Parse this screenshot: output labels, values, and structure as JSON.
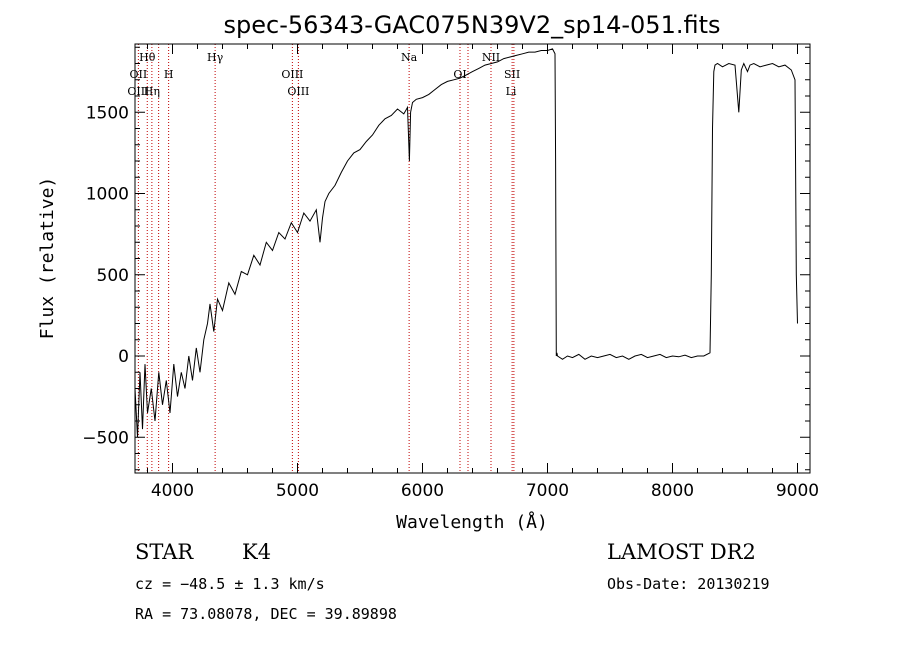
{
  "chart_data": {
    "type": "line",
    "title": "spec-56343-GAC075N39V2_sp14-051.fits",
    "xlabel": "Wavelength (Å)",
    "ylabel": "Flux (relative)",
    "xlim": [
      3700,
      9100
    ],
    "ylim": [
      -720,
      1920
    ],
    "x_ticks": [
      4000,
      5000,
      6000,
      7000,
      8000,
      9000
    ],
    "y_ticks": [
      -500,
      0,
      500,
      1000,
      1500
    ],
    "x_tick_labels": [
      "4000",
      "5000",
      "6000",
      "7000",
      "8000",
      "9000"
    ],
    "y_tick_labels": [
      "−500",
      "0",
      "500",
      "1000",
      "1500"
    ],
    "series": [
      {
        "x": [
          3700,
          3720,
          3740,
          3760,
          3780,
          3800,
          3830,
          3860,
          3890,
          3920,
          3950,
          3980,
          4010,
          4040,
          4070,
          4100,
          4130,
          4160,
          4190,
          4220,
          4250,
          4280,
          4300,
          4330,
          4360,
          4400,
          4450,
          4500,
          4550,
          4600,
          4650,
          4700,
          4750,
          4800,
          4850,
          4900,
          4950,
          5000,
          5050,
          5100,
          5150,
          5180,
          5200,
          5220,
          5250,
          5300,
          5350,
          5400,
          5450,
          5500,
          5550,
          5600,
          5650,
          5700,
          5750,
          5800,
          5850,
          5880,
          5895,
          5905,
          5920,
          5950,
          6000,
          6050,
          6100,
          6150,
          6200,
          6250,
          6300,
          6350,
          6400,
          6450,
          6500,
          6550,
          6600,
          6650,
          6700,
          6750,
          6800,
          6850,
          6900,
          6950,
          7000,
          7040,
          7060,
          7065,
          7070,
          7075,
          7080,
          7120,
          7160,
          7200,
          7250,
          7300,
          7350,
          7400,
          7450,
          7500,
          7550,
          7600,
          7650,
          7700,
          7750,
          7800,
          7850,
          7900,
          7950,
          8000,
          8050,
          8100,
          8150,
          8200,
          8250,
          8300,
          8310,
          8320,
          8330,
          8340,
          8360,
          8400,
          8450,
          8500,
          8530,
          8550,
          8570,
          8600,
          8620,
          8650,
          8700,
          8750,
          8800,
          8850,
          8900,
          8950,
          8980,
          8990,
          9000
        ],
        "y": [
          -200,
          -500,
          -100,
          -450,
          -50,
          -350,
          -200,
          -400,
          -100,
          -300,
          -150,
          -350,
          -50,
          -250,
          -100,
          -200,
          0,
          -150,
          50,
          -100,
          100,
          200,
          320,
          150,
          350,
          280,
          450,
          380,
          520,
          500,
          620,
          560,
          700,
          650,
          760,
          720,
          820,
          760,
          880,
          830,
          900,
          700,
          850,
          950,
          1000,
          1050,
          1130,
          1200,
          1250,
          1270,
          1320,
          1360,
          1420,
          1460,
          1480,
          1520,
          1490,
          1530,
          1200,
          1500,
          1560,
          1580,
          1590,
          1610,
          1640,
          1670,
          1690,
          1700,
          1710,
          1730,
          1750,
          1770,
          1790,
          1800,
          1810,
          1830,
          1840,
          1850,
          1860,
          1870,
          1870,
          1880,
          1880,
          1890,
          1860,
          1200,
          0,
          20,
          0,
          -20,
          0,
          -10,
          10,
          -20,
          0,
          -10,
          0,
          10,
          -10,
          0,
          -20,
          0,
          10,
          -10,
          0,
          10,
          -10,
          0,
          -5,
          5,
          -10,
          0,
          0,
          20,
          500,
          1400,
          1750,
          1790,
          1800,
          1780,
          1800,
          1790,
          1500,
          1760,
          1800,
          1750,
          1790,
          1800,
          1780,
          1790,
          1800,
          1780,
          1790,
          1760,
          1700,
          500,
          200
        ]
      }
    ],
    "spectral_lines": [
      {
        "label": "Hθ",
        "x": 3798,
        "row": 1
      },
      {
        "label": "OII",
        "x": 3727,
        "row": 2
      },
      {
        "label": "H",
        "x": 3969,
        "row": 2
      },
      {
        "label": "OIII",
        "x": 3727,
        "row": 3
      },
      {
        "label": "Hη",
        "x": 3835,
        "row": 3
      },
      {
        "label": "Hγ",
        "x": 4341,
        "row": 1
      },
      {
        "label": "OIII",
        "x": 4959,
        "row": 2
      },
      {
        "label": "OIII",
        "x": 5007,
        "row": 3
      },
      {
        "label": "Na",
        "x": 5893,
        "row": 1
      },
      {
        "label": "OI",
        "x": 6300,
        "row": 2
      },
      {
        "label": "NII",
        "x": 6548,
        "row": 1
      },
      {
        "label": "SII",
        "x": 6717,
        "row": 2
      },
      {
        "label": "Li",
        "x": 6708,
        "row": 3
      }
    ],
    "line_positions": [
      3727,
      3798,
      3835,
      3889,
      3969,
      4341,
      4959,
      5007,
      5893,
      6300,
      6364,
      6548,
      6717,
      6731
    ]
  },
  "info": {
    "class": "STAR",
    "subclass": "K4",
    "cz": "cz = −48.5 ± 1.3 km/s",
    "radec": "RA =  73.08078, DEC =  39.89898",
    "survey": "LAMOST DR2",
    "obs_date": "Obs-Date: 20130219"
  },
  "colors": {
    "line_markers": "#c00000",
    "spectrum": "#000000"
  }
}
